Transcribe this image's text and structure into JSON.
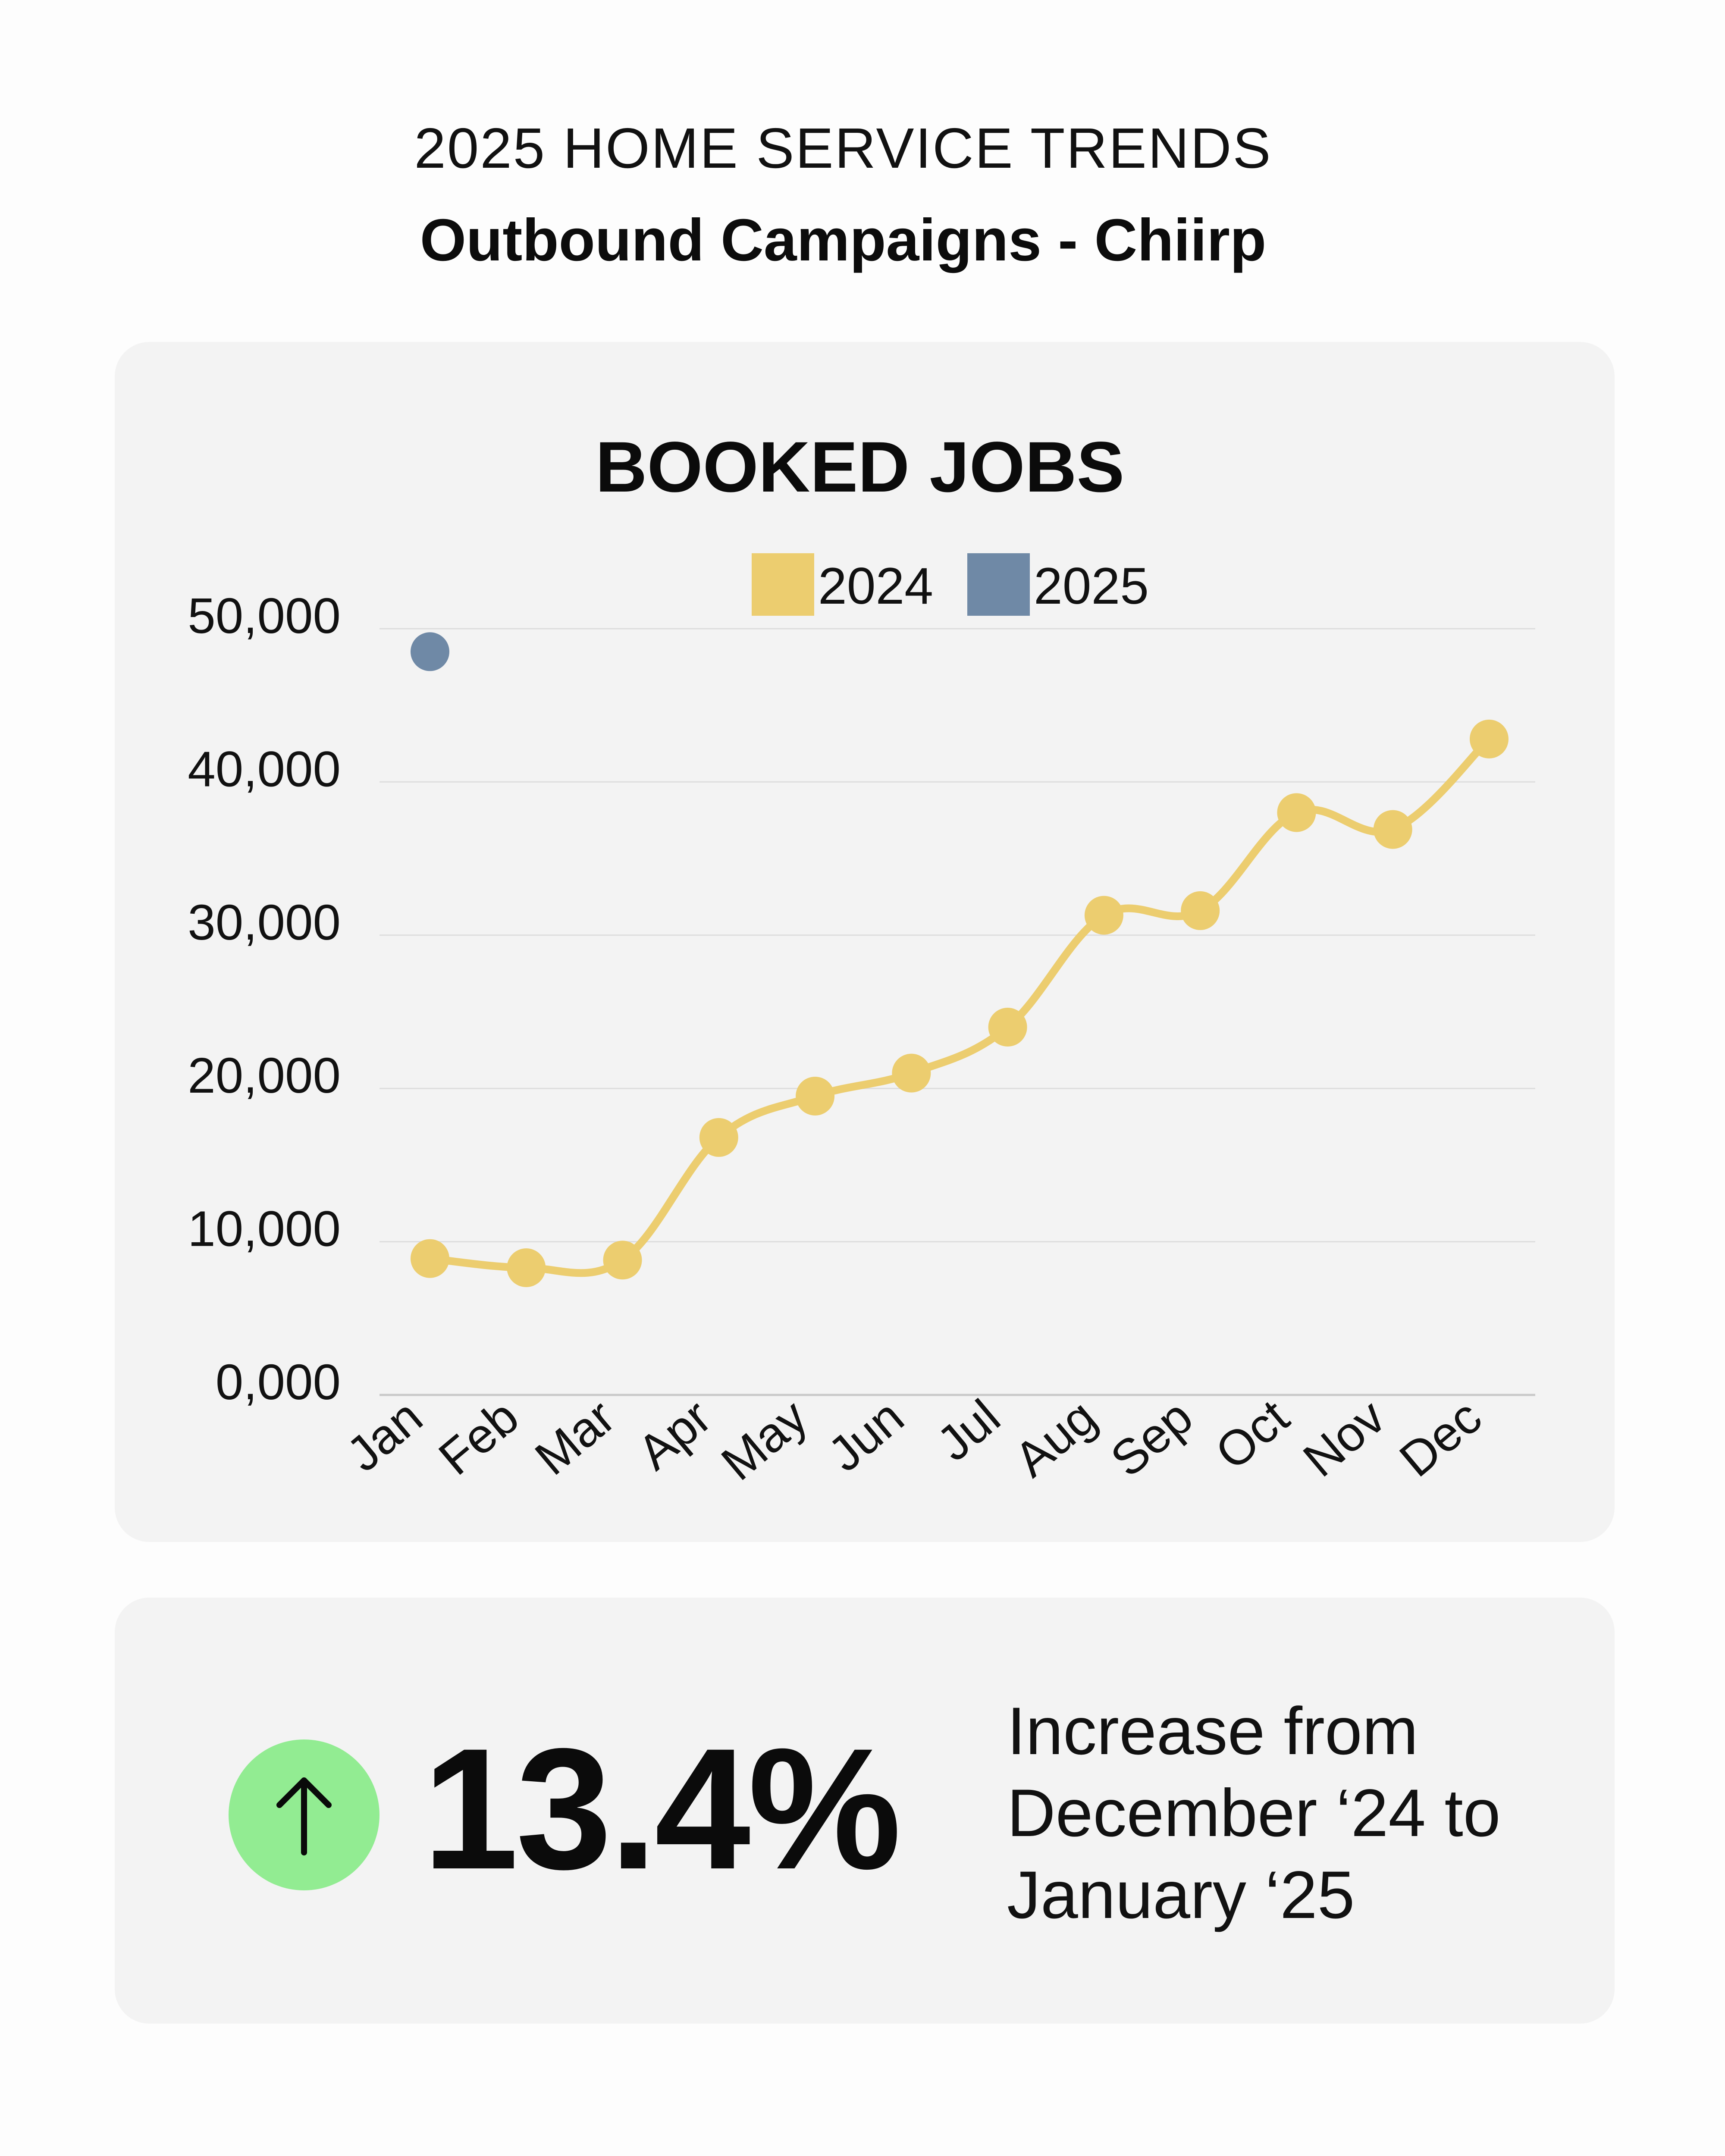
{
  "header": {
    "kicker": "2025 HOME SERVICE TRENDS",
    "subtitle": "Outbound Campaigns - Chiirp"
  },
  "chart_data": {
    "type": "line",
    "title": "BOOKED JOBS",
    "categories": [
      "Jan",
      "Feb",
      "Mar",
      "Apr",
      "May",
      "Jun",
      "Jul",
      "Aug",
      "Sep",
      "Oct",
      "Nov",
      "Dec"
    ],
    "series": [
      {
        "name": "2024",
        "color": "#eccd6f",
        "values": [
          8900,
          8300,
          8800,
          16800,
          19500,
          21000,
          24000,
          31300,
          31600,
          38000,
          36900,
          42800
        ]
      },
      {
        "name": "2025",
        "color": "#6f89a6",
        "values": [
          48500,
          null,
          null,
          null,
          null,
          null,
          null,
          null,
          null,
          null,
          null,
          null
        ]
      }
    ],
    "ylim": [
      0,
      50000
    ],
    "yticks": [
      0,
      10000,
      20000,
      30000,
      40000,
      50000
    ],
    "ytick_labels": [
      "0,000",
      "10,000",
      "20,000",
      "30,000",
      "40,000",
      "50,000"
    ],
    "grid": true,
    "legend_position": "top-center",
    "xlabel": "",
    "ylabel": ""
  },
  "stat": {
    "value": "13.4%",
    "description_lines": [
      "Increase from",
      "December ‘24 to",
      "January ‘25"
    ],
    "icon": "arrow-up-icon",
    "icon_bg": "#92ec92"
  }
}
